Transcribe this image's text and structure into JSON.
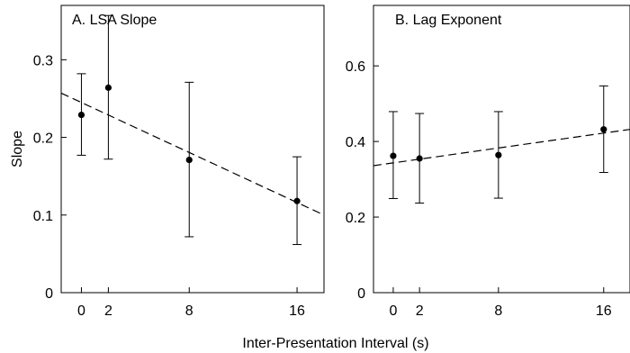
{
  "xlabel": "Inter-Presentation Interval (s)",
  "chart_data": [
    {
      "type": "scatter",
      "title": "A. LSA Slope",
      "ylabel": "Slope",
      "xlim": [
        -1.5,
        18
      ],
      "ylim": [
        0,
        0.37
      ],
      "xticks": [
        0,
        2,
        8,
        16
      ],
      "xtick_labels": [
        "0",
        "2",
        "8",
        "16"
      ],
      "yticks": [
        0,
        0.1,
        0.2,
        0.3
      ],
      "ytick_labels": [
        "0",
        "0.1",
        "0.2",
        "0.3"
      ],
      "points": [
        {
          "x": 0,
          "y": 0.229,
          "lo": 0.177,
          "hi": 0.282
        },
        {
          "x": 2,
          "y": 0.264,
          "lo": 0.172,
          "hi": 0.357
        },
        {
          "x": 8,
          "y": 0.171,
          "lo": 0.072,
          "hi": 0.271
        },
        {
          "x": 16,
          "y": 0.118,
          "lo": 0.062,
          "hi": 0.175
        }
      ],
      "fit_line": {
        "style": "dashed",
        "x": [
          -1.5,
          18
        ],
        "y": [
          0.257,
          0.1
        ]
      }
    },
    {
      "type": "scatter",
      "title": "B. Lag Exponent",
      "ylabel": "",
      "xlim": [
        -1.5,
        18
      ],
      "ylim": [
        0,
        0.76
      ],
      "xticks": [
        0,
        2,
        8,
        16
      ],
      "xtick_labels": [
        "0",
        "2",
        "8",
        "16"
      ],
      "yticks": [
        0,
        0.2,
        0.4,
        0.6
      ],
      "ytick_labels": [
        "0",
        "0.2",
        "0.4",
        "0.6"
      ],
      "points": [
        {
          "x": 0,
          "y": 0.362,
          "lo": 0.249,
          "hi": 0.479
        },
        {
          "x": 2,
          "y": 0.355,
          "lo": 0.237,
          "hi": 0.474
        },
        {
          "x": 8,
          "y": 0.364,
          "lo": 0.25,
          "hi": 0.479
        },
        {
          "x": 16,
          "y": 0.432,
          "lo": 0.318,
          "hi": 0.547
        }
      ],
      "fit_line": {
        "style": "dashed",
        "x": [
          -1.5,
          18
        ],
        "y": [
          0.336,
          0.432
        ]
      }
    }
  ]
}
